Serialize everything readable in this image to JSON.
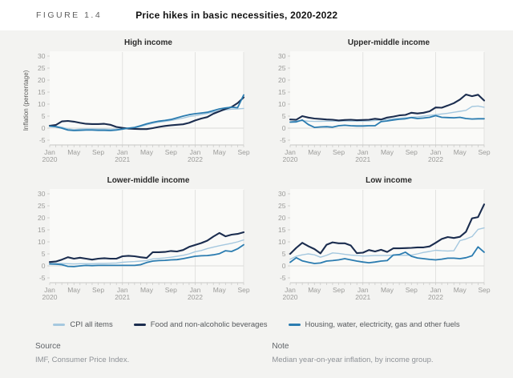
{
  "figure": {
    "label": "FIGURE 1.4",
    "title": "Price hikes in basic necessities, 2020-2022"
  },
  "y_axis_label": "Inflation (percentage)",
  "footer": {
    "source_label": "Source",
    "source_text": "IMF, Consumer Price Index.",
    "note_label": "Note",
    "note_text": "Median year-on-year inflation, by income group."
  },
  "chart_data": {
    "type": "line",
    "title": "Price hikes in basic necessities, 2020-2022",
    "ylabel": "Inflation (percentage)",
    "ylim": [
      -5,
      30
    ],
    "y_ticks": [
      30,
      25,
      20,
      15,
      10,
      5,
      0,
      -5
    ],
    "months": 33,
    "x_range": "Jan 2020 - Sep 2022, monthly",
    "x_ticks": [
      {
        "i": 0,
        "label": "Jan",
        "year": "2020"
      },
      {
        "i": 4,
        "label": "May"
      },
      {
        "i": 8,
        "label": "Sep"
      },
      {
        "i": 12,
        "label": "Jan",
        "year": "2021"
      },
      {
        "i": 16,
        "label": "May"
      },
      {
        "i": 20,
        "label": "Sep"
      },
      {
        "i": 24,
        "label": "Jan",
        "year": "2022"
      },
      {
        "i": 28,
        "label": "May"
      },
      {
        "i": 32,
        "label": "Sep"
      }
    ],
    "series": [
      {
        "name": "CPI all items",
        "color": "#a5c8df"
      },
      {
        "name": "Food and non-alcoholic beverages",
        "color": "#1b2d4f"
      },
      {
        "name": "Housing, water, electricity, gas and other fuels",
        "color": "#2b7cb0"
      }
    ],
    "charts": [
      {
        "title": "High income",
        "has_ylabel": true,
        "values": [
          [
            1.0,
            0.8,
            0.4,
            -0.3,
            -0.6,
            -0.4,
            -0.3,
            -0.3,
            -0.4,
            -0.4,
            -0.5,
            -0.4,
            -0.2,
            0.0,
            0.1,
            0.7,
            1.4,
            2.0,
            2.5,
            2.8,
            3.2,
            3.7,
            4.2,
            4.8,
            5.2,
            5.7,
            6.1,
            6.7,
            7.2,
            7.6,
            7.9,
            8.0,
            8.2
          ],
          [
            1.0,
            1.3,
            2.8,
            3.0,
            2.7,
            2.2,
            1.8,
            1.7,
            1.7,
            1.8,
            1.4,
            0.5,
            0.1,
            -0.2,
            -0.3,
            -0.4,
            -0.4,
            0.0,
            0.5,
            0.9,
            1.2,
            1.4,
            1.6,
            2.2,
            3.2,
            4.0,
            4.6,
            6.0,
            7.0,
            8.0,
            8.8,
            10.4,
            12.8
          ],
          [
            0.8,
            0.6,
            0.0,
            -0.8,
            -1.0,
            -0.9,
            -0.8,
            -0.8,
            -0.9,
            -0.9,
            -1.0,
            -0.8,
            -0.4,
            0.0,
            0.3,
            1.0,
            1.8,
            2.4,
            2.9,
            3.2,
            3.6,
            4.3,
            5.0,
            5.6,
            6.0,
            6.3,
            6.6,
            7.3,
            8.0,
            8.4,
            8.7,
            8.5,
            13.8
          ]
        ]
      },
      {
        "title": "Upper-middle income",
        "has_ylabel": false,
        "values": [
          [
            2.6,
            3.0,
            3.1,
            2.9,
            2.8,
            2.8,
            2.9,
            2.9,
            2.9,
            3.0,
            2.9,
            2.9,
            2.9,
            3.0,
            3.2,
            3.4,
            3.6,
            3.9,
            4.1,
            4.3,
            4.5,
            4.7,
            5.0,
            5.3,
            5.6,
            5.9,
            6.2,
            6.6,
            7.0,
            7.4,
            9.0,
            9.2,
            8.7
          ],
          [
            3.6,
            3.5,
            5.0,
            4.4,
            4.0,
            3.8,
            3.6,
            3.5,
            3.2,
            3.4,
            3.5,
            3.3,
            3.4,
            3.5,
            3.9,
            3.6,
            4.4,
            4.8,
            5.3,
            5.5,
            6.4,
            6.1,
            6.4,
            7.0,
            8.6,
            8.5,
            9.4,
            10.4,
            11.9,
            14.0,
            13.3,
            13.9,
            11.5
          ],
          [
            2.5,
            2.6,
            3.4,
            1.5,
            0.3,
            0.5,
            0.6,
            0.4,
            1.0,
            1.2,
            1.0,
            0.9,
            0.9,
            1.0,
            1.0,
            2.7,
            3.0,
            3.4,
            3.7,
            3.9,
            4.4,
            4.0,
            4.2,
            4.5,
            5.2,
            4.5,
            4.4,
            4.3,
            4.5,
            4.0,
            3.8,
            3.9,
            3.9
          ]
        ]
      },
      {
        "title": "Lower-middle income",
        "has_ylabel": false,
        "values": [
          [
            1.1,
            1.0,
            1.0,
            0.9,
            0.8,
            0.9,
            0.9,
            0.9,
            1.0,
            1.0,
            1.1,
            1.2,
            1.5,
            1.7,
            1.8,
            2.0,
            2.2,
            2.9,
            3.1,
            3.3,
            3.6,
            4.0,
            4.4,
            5.0,
            5.9,
            6.4,
            7.2,
            7.8,
            8.4,
            8.9,
            9.4,
            10.0,
            10.8
          ],
          [
            1.6,
            1.8,
            2.6,
            3.6,
            3.0,
            3.4,
            3.0,
            2.6,
            3.0,
            3.2,
            3.0,
            3.0,
            4.0,
            4.2,
            4.0,
            3.6,
            3.3,
            5.7,
            5.7,
            5.8,
            6.2,
            6.0,
            6.6,
            7.9,
            8.7,
            9.5,
            10.5,
            12.2,
            13.7,
            12.3,
            13.0,
            13.3,
            14.0
          ],
          [
            0.8,
            0.7,
            0.5,
            -0.2,
            -0.3,
            0.0,
            0.2,
            0.1,
            0.2,
            0.2,
            0.2,
            0.2,
            0.2,
            0.2,
            0.2,
            0.5,
            1.4,
            2.0,
            2.2,
            2.3,
            2.5,
            2.6,
            3.0,
            3.5,
            4.0,
            4.2,
            4.3,
            4.6,
            5.1,
            6.3,
            6.0,
            7.1,
            8.8
          ]
        ]
      },
      {
        "title": "Low income",
        "has_ylabel": false,
        "values": [
          [
            2.8,
            4.0,
            4.6,
            5.0,
            4.6,
            3.6,
            4.4,
            5.4,
            5.2,
            4.8,
            4.5,
            4.3,
            4.1,
            4.2,
            4.3,
            4.3,
            4.3,
            4.5,
            4.4,
            4.4,
            4.5,
            5.0,
            5.6,
            6.0,
            6.5,
            6.3,
            6.2,
            6.3,
            10.5,
            11.2,
            12.2,
            15.2,
            15.8
          ],
          [
            5.0,
            7.5,
            9.6,
            8.2,
            7.0,
            5.2,
            8.8,
            9.8,
            9.4,
            9.4,
            8.5,
            5.3,
            5.5,
            6.6,
            6.0,
            6.7,
            5.8,
            7.3,
            7.3,
            7.4,
            7.5,
            7.7,
            7.7,
            8.1,
            9.6,
            11.2,
            12.0,
            11.6,
            12.1,
            14.2,
            19.8,
            20.3,
            25.6
          ],
          [
            1.5,
            3.4,
            2.1,
            1.5,
            1.0,
            1.2,
            2.0,
            2.2,
            2.5,
            3.0,
            2.5,
            2.0,
            1.6,
            1.3,
            1.6,
            2.0,
            2.2,
            4.5,
            4.7,
            5.7,
            4.0,
            3.3,
            3.0,
            2.7,
            2.5,
            2.8,
            3.2,
            3.2,
            3.0,
            3.4,
            4.2,
            7.9,
            5.7
          ]
        ]
      }
    ]
  }
}
